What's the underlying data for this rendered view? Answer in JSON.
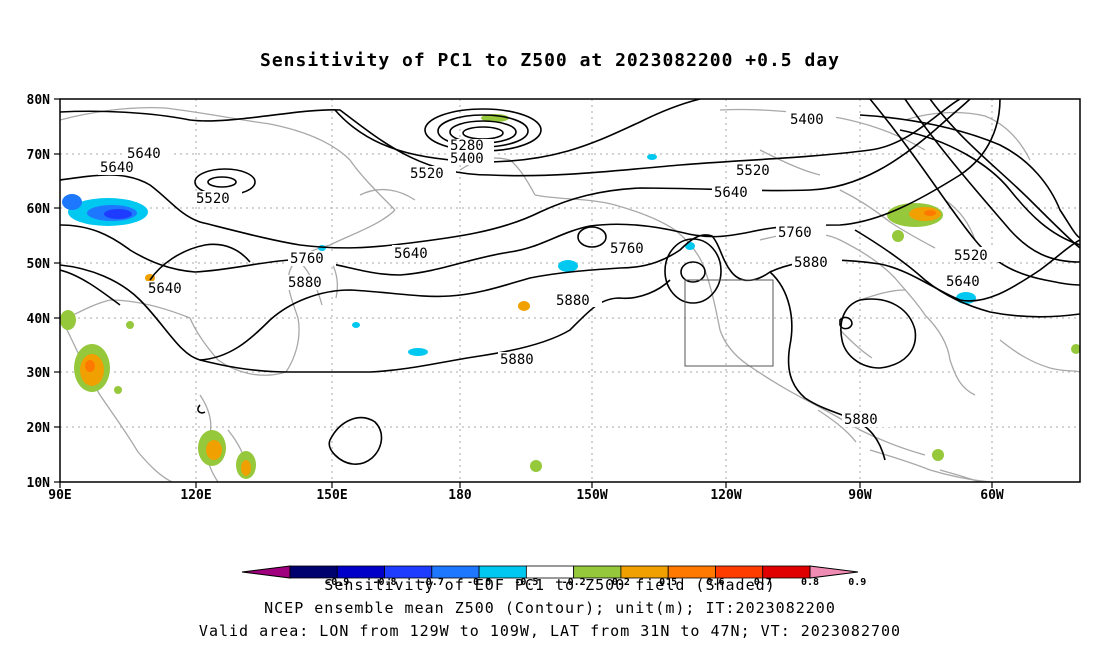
{
  "title": "Sensitivity of PC1 to Z500 at 2023082200 +0.5 day",
  "lat_labels": [
    "80N",
    "70N",
    "60N",
    "50N",
    "40N",
    "30N",
    "20N",
    "10N"
  ],
  "lon_labels": [
    "90E",
    "120E",
    "150E",
    "180",
    "150W",
    "120W",
    "90W",
    "60W"
  ],
  "contour_labels": {
    "c5280": "5280",
    "c5400": "5400",
    "c5520": "5520",
    "c5640": "5640",
    "c5760": "5760",
    "c5880": "5880"
  },
  "colorbar": {
    "ticks": [
      "-0.9",
      "-0.8",
      "-0.7",
      "-0.6",
      "-0.5",
      "-0.2",
      "0.2",
      "0.5",
      "0.6",
      "0.7",
      "0.8",
      "0.9"
    ],
    "colors": [
      "#a0007d",
      "#00006e",
      "#0000c8",
      "#1e3cff",
      "#1e78ff",
      "#00c8f0",
      "#ffffff",
      "#96c83c",
      "#f0a000",
      "#ff7800",
      "#ff3c00",
      "#e10000",
      "#f08cb4"
    ]
  },
  "captions": {
    "line1": "Sensitivity of EOF PC1 to Z500 field (Shaded)",
    "line2": "NCEP ensemble mean Z500 (Contour); unit(m); IT:2023082200",
    "line3": "Valid area: LON from 129W to 109W, LAT from 31N to 47N; VT: 2023082700"
  }
}
